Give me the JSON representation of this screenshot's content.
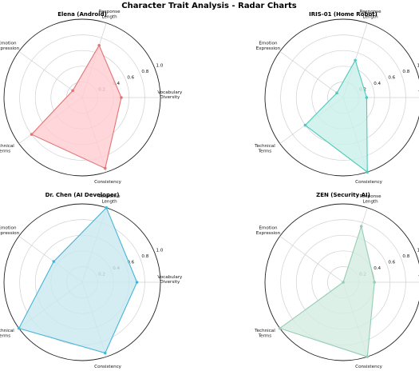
{
  "figure_title": "Character Trait Analysis - Radar Charts",
  "axes": [
    "Vocabulary Diversity",
    "Response Length",
    "Emotion Expression",
    "Technical Terms",
    "Consistency"
  ],
  "radial_ticks": [
    "0.2",
    "0.4",
    "0.6",
    "0.8",
    "1.0"
  ],
  "chart_data": [
    {
      "type": "radar",
      "title": "Elena (Android)",
      "categories": [
        "Vocabulary Diversity",
        "Response Length",
        "Emotion Expression",
        "Technical Terms",
        "Consistency"
      ],
      "values": [
        0.5,
        0.7,
        0.15,
        0.8,
        0.95
      ],
      "rlim": [
        0,
        1.0
      ],
      "color": "#e57373",
      "fill": "#ffcdd2"
    },
    {
      "type": "radar",
      "title": "IRIS-01 (Home Robot)",
      "categories": [
        "Vocabulary Diversity",
        "Response Length",
        "Emotion Expression",
        "Technical Terms",
        "Consistency"
      ],
      "values": [
        0.3,
        0.5,
        0.1,
        0.6,
        1.0
      ],
      "rlim": [
        0,
        1.0
      ],
      "color": "#4ec9bb",
      "fill": "#c9f0ea"
    },
    {
      "type": "radar",
      "title": "Dr. Chen (AI Developer)",
      "categories": [
        "Vocabulary Diversity",
        "Response Length",
        "Emotion Expression",
        "Technical Terms",
        "Consistency"
      ],
      "values": [
        0.7,
        1.0,
        0.45,
        1.0,
        0.95
      ],
      "rlim": [
        0,
        1.0
      ],
      "color": "#48b4d6",
      "fill": "#c8e8f0"
    },
    {
      "type": "radar",
      "title": "ZEN (Security AI)",
      "categories": [
        "Vocabulary Diversity",
        "Response Length",
        "Emotion Expression",
        "Technical Terms",
        "Consistency"
      ],
      "values": [
        0.4,
        0.75,
        0.0,
        1.0,
        1.0
      ],
      "rlim": [
        0,
        1.0
      ],
      "color": "#96cdb6",
      "fill": "#d5ece1"
    }
  ]
}
